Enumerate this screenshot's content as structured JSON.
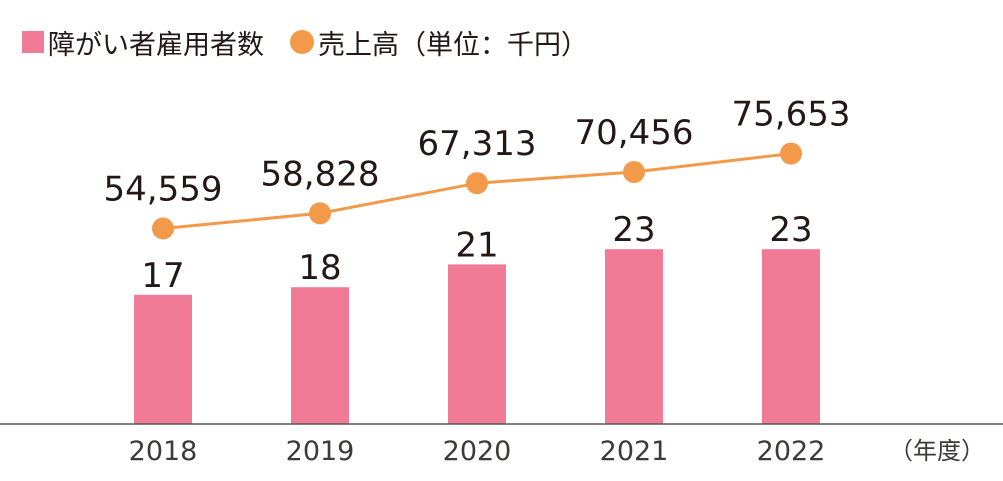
{
  "legend": {
    "bars": {
      "label": "障がい者雇用者数",
      "color": "#f17a96"
    },
    "line": {
      "label": "売上高（単位：千円）",
      "color": "#f2994a"
    }
  },
  "x_unit": "（年度）",
  "chart_data": {
    "type": "bar",
    "categories": [
      "2018",
      "2019",
      "2020",
      "2021",
      "2022"
    ],
    "series": [
      {
        "name": "障がい者雇用者数",
        "type": "bar",
        "values": [
          17,
          18,
          21,
          23,
          23
        ],
        "color": "#f17a96"
      },
      {
        "name": "売上高（単位：千円）",
        "type": "line",
        "values": [
          54559,
          58828,
          67313,
          70456,
          75653
        ],
        "color": "#f2994a"
      }
    ],
    "bar_labels": [
      "17",
      "18",
      "21",
      "23",
      "23"
    ],
    "line_labels": [
      "54,559",
      "58,828",
      "67,313",
      "70,456",
      "75,653"
    ],
    "title": "",
    "xlabel": "（年度）",
    "ylabel": "",
    "grid": false,
    "legend_position": "top-left"
  }
}
